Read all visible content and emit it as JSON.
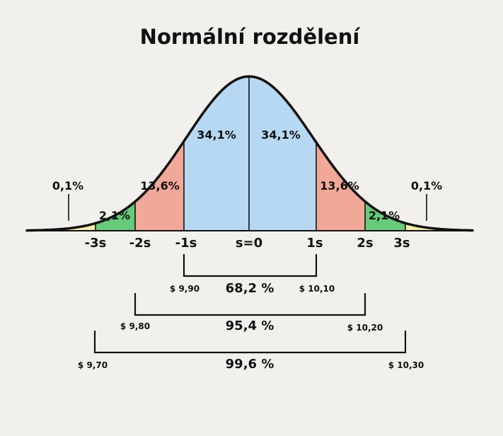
{
  "title": "Normální rozdělení",
  "colors": {
    "tail": "#f8eda6",
    "band2": "#66cb7a",
    "band1": "#f1a899",
    "center": "#b7d8f2",
    "curve": "#111111",
    "background": "#f2f0ed"
  },
  "segments": {
    "tail_left": "0,1%",
    "band2_left": "2,1%",
    "band1_left": "13,6%",
    "center_left": "34,1%",
    "center_right": "34,1%",
    "band1_right": "13,6%",
    "band2_right": "2,1%",
    "tail_right": "0,1%"
  },
  "axis": {
    "m3": "-3s",
    "m2": "-2s",
    "m1": "-1s",
    "zero": "s=0",
    "p1": "1s",
    "p2": "2s",
    "p3": "3s"
  },
  "ranges": [
    {
      "percent": "68,2 %",
      "low": "$ 9,90",
      "high": "$ 10,10"
    },
    {
      "percent": "95,4 %",
      "low": "$ 9,80",
      "high": "$ 10,20"
    },
    {
      "percent": "99,6 %",
      "low": "$ 9,70",
      "high": "$ 10,30"
    }
  ]
}
